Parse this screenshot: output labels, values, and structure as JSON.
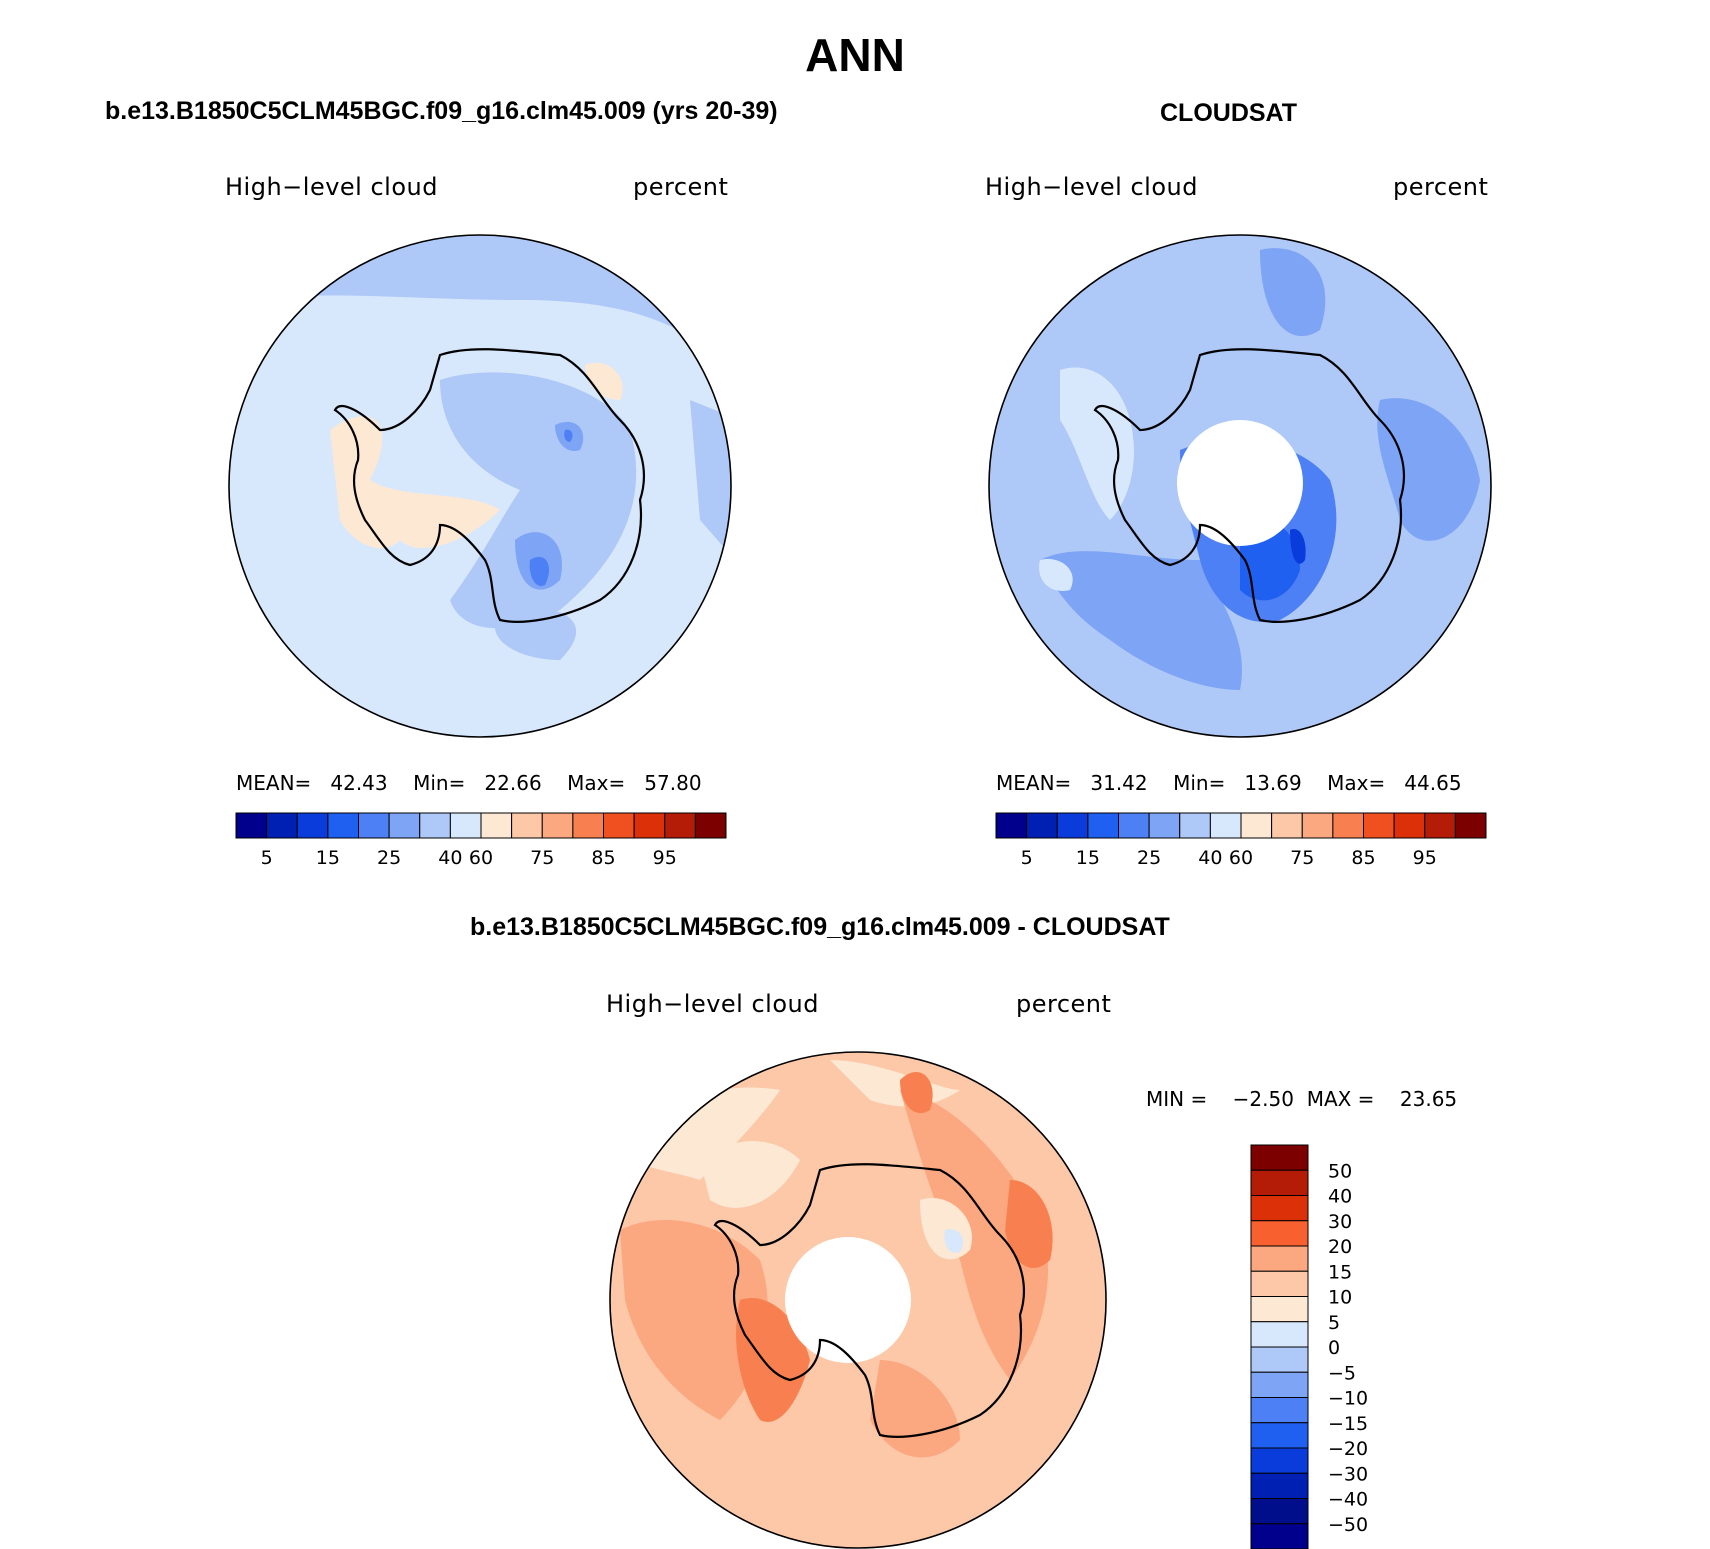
{
  "page": {
    "title": "ANN"
  },
  "panels": [
    {
      "title": "b.e13.B1850C5CLM45BGC.f09_g16.clm45.009 (yrs 20-39)",
      "variable": "High−level cloud",
      "units": "percent",
      "stats": {
        "mean_label": "MEAN=",
        "mean": "42.43",
        "min_label": "Min=",
        "min": "22.66",
        "max_label": "Max=",
        "max": "57.80"
      },
      "pole_hole": false
    },
    {
      "title": "CLOUDSAT",
      "variable": "High−level cloud",
      "units": "percent",
      "stats": {
        "mean_label": "MEAN=",
        "mean": "31.42",
        "min_label": "Min=",
        "min": "13.69",
        "max_label": "Max=",
        "max": "44.65"
      },
      "pole_hole": true
    },
    {
      "title": "b.e13.B1850C5CLM45BGC.f09_g16.clm45.009 - CLOUDSAT",
      "variable": "High−level cloud",
      "units": "percent",
      "stats": {
        "min_label": "MIN =",
        "min": "−2.50",
        "max_label": "MAX =",
        "max": "23.65"
      },
      "pole_hole": true
    }
  ],
  "colorbar_abs": {
    "colors": [
      "#00008c",
      "#0020b4",
      "#0a3cdc",
      "#2060f0",
      "#4c80f4",
      "#7ea4f6",
      "#aec8f8",
      "#d8e8fc",
      "#fde8d4",
      "#fcc8a8",
      "#fba880",
      "#f88050",
      "#f05020",
      "#dc3008",
      "#b41c08",
      "#7c0000"
    ],
    "tick_labels": [
      "5",
      "15",
      "25",
      "40",
      "60",
      "75",
      "85",
      "95"
    ]
  },
  "colorbar_diff": {
    "colors": [
      "#7c0000",
      "#b41c08",
      "#dc3008",
      "#f86030",
      "#fba880",
      "#fcc8a8",
      "#fde8d4",
      "#d8e8fc",
      "#aec8f8",
      "#7ea4f6",
      "#4c80f4",
      "#2060f0",
      "#0a3cdc",
      "#0020b4",
      "#000e8c",
      "#00008c"
    ],
    "tick_labels": [
      "50",
      "40",
      "30",
      "20",
      "15",
      "10",
      "5",
      "0",
      "−5",
      "−10",
      "−15",
      "−20",
      "−30",
      "−40",
      "−50"
    ]
  }
}
